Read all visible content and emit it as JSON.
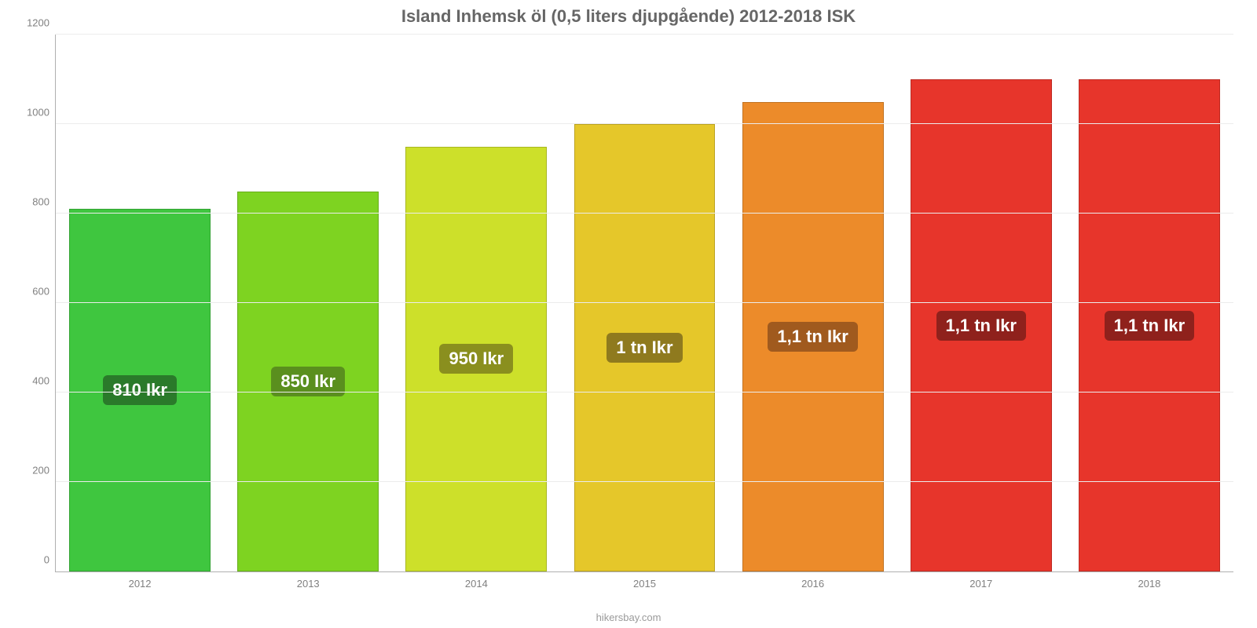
{
  "chart": {
    "type": "bar",
    "title": "Island Inhemsk öl (0,5 liters djupgående) 2012-2018 ISK",
    "title_color": "#666666",
    "title_fontsize": 22,
    "credit": "hikersbay.com",
    "credit_color": "#9a9a9a",
    "background_color": "#ffffff",
    "axis_color": "#b0b0b0",
    "grid_color": "#ececec",
    "tick_label_color": "#808080",
    "tick_label_fontsize": 13,
    "ylim": [
      0,
      1200
    ],
    "ytick_step": 200,
    "yticks": [
      0,
      200,
      400,
      600,
      800,
      1000,
      1200
    ],
    "categories": [
      "2012",
      "2013",
      "2014",
      "2015",
      "2016",
      "2017",
      "2018"
    ],
    "values": [
      810,
      850,
      950,
      1000,
      1050,
      1100,
      1100
    ],
    "value_labels": [
      "810 Ikr",
      "850 Ikr",
      "950 Ikr",
      "1 tn Ikr",
      "1,1 tn Ikr",
      "1,1 tn Ikr",
      "1,1 tn Ikr"
    ],
    "bar_colors": [
      "#3fc63f",
      "#7ed321",
      "#cde02a",
      "#e5c72a",
      "#ec8b2a",
      "#e7352b",
      "#e7352b"
    ],
    "label_bg_colors": [
      "#2a7a2a",
      "#5a8f1e",
      "#8a8f1e",
      "#8f7a1e",
      "#a05a1e",
      "#8f211c",
      "#8f211c"
    ],
    "label_text_color": "#ffffff",
    "label_fontsize": 22,
    "bar_width_ratio": 0.84,
    "bar_border_color": "rgba(0,0,0,0.18)"
  }
}
